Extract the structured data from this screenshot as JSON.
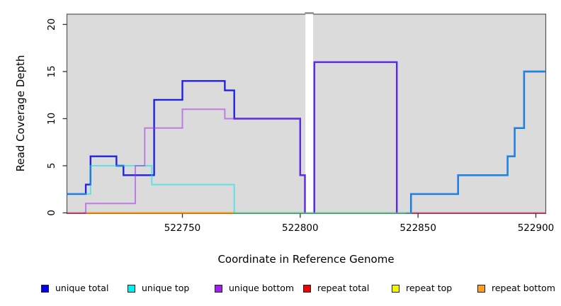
{
  "figure": {
    "background": "#ffffff",
    "plot_background": "#dbdbdb",
    "frame_color": "#555555",
    "tick_color": "#333333"
  },
  "chart_data": {
    "type": "line",
    "subtype": "step-coverage",
    "title": "",
    "xlabel": "Coordinate in Reference Genome",
    "ylabel": "Read Coverage Depth",
    "xlim": [
      522701,
      522904
    ],
    "ylim": [
      0,
      21
    ],
    "grid": false,
    "x_ticks": [
      522750,
      522800,
      522850,
      522900
    ],
    "y_ticks": [
      0,
      5,
      10,
      15,
      20
    ],
    "gap_region": {
      "x_start": 522802,
      "x_end": 522805
    },
    "series": [
      {
        "name": "repeat total",
        "color": "#E00040",
        "opacity": 0.6,
        "width": 1.8,
        "paths": [
          [
            [
              522701,
              0
            ],
            [
              522904,
              0
            ]
          ]
        ]
      },
      {
        "name": "repeat top",
        "color": "#E8E800",
        "opacity": 0.6,
        "width": 1.8,
        "paths": [
          [
            [
              522709,
              0
            ],
            [
              522845,
              0
            ]
          ]
        ]
      },
      {
        "name": "repeat bottom",
        "color": "#FF9500",
        "opacity": 1,
        "width": 2,
        "paths": [
          [
            [
              522709,
              0
            ],
            [
              522772,
              0
            ]
          ]
        ]
      },
      {
        "name": "unique total",
        "color": "#2222E2",
        "opacity": 1,
        "width": 2.4,
        "paths": [
          [
            [
              522701,
              2
            ],
            [
              522709,
              2
            ],
            [
              522709,
              3
            ],
            [
              522711,
              3
            ],
            [
              522711,
              6
            ],
            [
              522722,
              6
            ],
            [
              522722,
              5
            ],
            [
              522725,
              5
            ],
            [
              522725,
              4
            ],
            [
              522738,
              4
            ],
            [
              522738,
              12
            ],
            [
              522750,
              12
            ],
            [
              522750,
              14
            ],
            [
              522768,
              14
            ],
            [
              522768,
              13
            ],
            [
              522772,
              13
            ],
            [
              522772,
              10
            ],
            [
              522800,
              10
            ],
            [
              522800,
              4
            ],
            [
              522802,
              4
            ],
            [
              522802,
              0
            ]
          ],
          [
            [
              522806,
              0
            ],
            [
              522806,
              16
            ],
            [
              522841,
              16
            ],
            [
              522841,
              0
            ]
          ],
          [
            [
              522847,
              0
            ],
            [
              522847,
              2
            ],
            [
              522867,
              2
            ],
            [
              522867,
              4
            ],
            [
              522888,
              4
            ],
            [
              522888,
              6
            ],
            [
              522891,
              6
            ],
            [
              522891,
              9
            ],
            [
              522895,
              9
            ],
            [
              522895,
              15
            ],
            [
              522904,
              15
            ]
          ]
        ]
      },
      {
        "name": "unique top",
        "color": "#00E6E6",
        "opacity": 0.55,
        "width": 2,
        "paths": [
          [
            [
              522701,
              2
            ],
            [
              522711,
              2
            ],
            [
              522711,
              5
            ],
            [
              522737,
              5
            ],
            [
              522737,
              3
            ],
            [
              522772,
              3
            ],
            [
              522772,
              0
            ],
            [
              522847,
              0
            ],
            [
              522847,
              2
            ],
            [
              522867,
              2
            ],
            [
              522867,
              4
            ],
            [
              522888,
              4
            ],
            [
              522888,
              6
            ],
            [
              522891,
              6
            ],
            [
              522891,
              9
            ],
            [
              522895,
              9
            ],
            [
              522895,
              15
            ],
            [
              522904,
              15
            ]
          ]
        ]
      },
      {
        "name": "unique bottom",
        "color": "#A030E8",
        "opacity": 0.55,
        "width": 2,
        "paths": [
          [
            [
              522708,
              0
            ],
            [
              522709,
              0
            ],
            [
              522709,
              1
            ],
            [
              522730,
              1
            ],
            [
              522730,
              5
            ],
            [
              522734,
              5
            ],
            [
              522734,
              9
            ],
            [
              522750,
              9
            ],
            [
              522750,
              11
            ],
            [
              522768,
              11
            ],
            [
              522768,
              10
            ],
            [
              522800,
              10
            ],
            [
              522800,
              4
            ],
            [
              522802,
              4
            ],
            [
              522802,
              0
            ]
          ],
          [
            [
              522806,
              0
            ],
            [
              522806,
              16
            ],
            [
              522841,
              16
            ],
            [
              522841,
              0
            ]
          ]
        ]
      }
    ]
  },
  "legend": {
    "items": [
      {
        "label": "unique total",
        "color": "#0000F0"
      },
      {
        "label": "unique top",
        "color": "#00F0F0"
      },
      {
        "label": "unique bottom",
        "color": "#A020F0"
      },
      {
        "label": "repeat total",
        "color": "#F00000"
      },
      {
        "label": "repeat top",
        "color": "#F5F500"
      },
      {
        "label": "repeat bottom",
        "color": "#FFA020"
      }
    ]
  }
}
